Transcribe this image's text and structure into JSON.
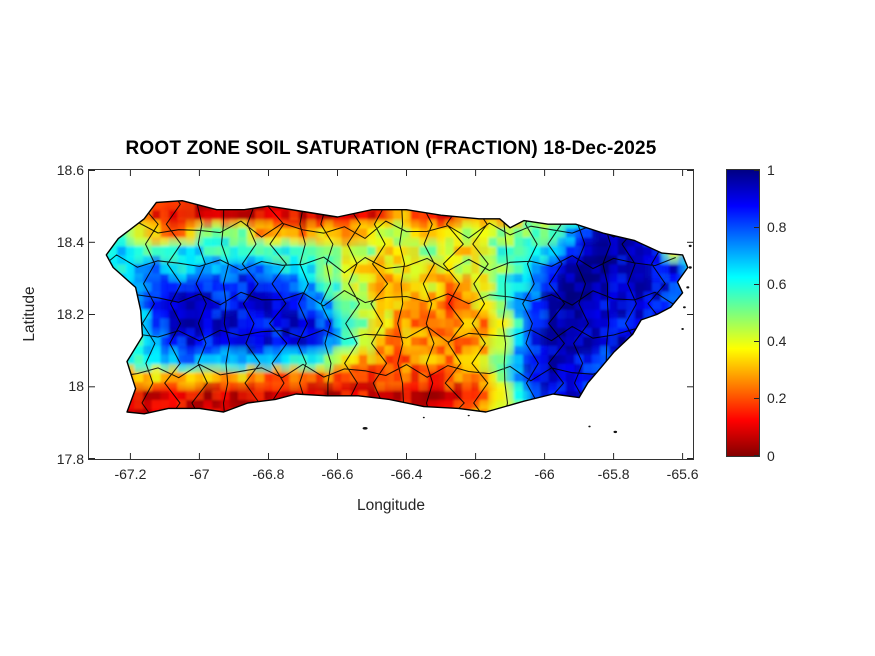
{
  "chart_data": {
    "type": "heatmap",
    "title": "ROOT ZONE SOIL SATURATION (FRACTION) 18-Dec-2025",
    "xlabel": "Longitude",
    "ylabel": "Latitude",
    "region": "Puerto Rico",
    "xlim": [
      -67.32,
      -65.57
    ],
    "ylim": [
      17.8,
      18.6
    ],
    "x_ticks": [
      -67.2,
      -67,
      -66.8,
      -66.6,
      -66.4,
      -66.2,
      -66,
      -65.8,
      -65.6
    ],
    "x_tick_labels": [
      "-67.2",
      "-67",
      "-66.8",
      "-66.6",
      "-66.4",
      "-66.2",
      "-66",
      "-65.8",
      "-65.6"
    ],
    "y_ticks": [
      17.8,
      18,
      18.2,
      18.4,
      18.6
    ],
    "y_tick_labels": [
      "17.8",
      "18",
      "18.2",
      "18.4",
      "18.6"
    ],
    "grid_on": false,
    "colorbar": {
      "min": 0,
      "max": 1,
      "ticks": [
        0,
        0.2,
        0.4,
        0.6,
        0.8,
        1
      ],
      "tick_labels": [
        "0",
        "0.2",
        "0.4",
        "0.6",
        "0.8",
        "1"
      ],
      "colormap": "jet-reversed (1=dark blue top, 0=dark red bottom)",
      "gradient_top_to_bottom": [
        "#000084",
        "#0000ff",
        "#0080ff",
        "#00ffff",
        "#7dff7d",
        "#ffff00",
        "#ff8000",
        "#ff0000",
        "#840000"
      ]
    },
    "grid": {
      "comment": "saturation fraction sampled on 0.05-deg grid, rows north-to-south, clipped to island outline",
      "lon_start": -67.275,
      "dlon": 0.05,
      "ncols": 36,
      "lat_start": 18.525,
      "dlat": -0.05,
      "nrows": 13,
      "values": [
        [
          0.3,
          0.3,
          0.25,
          0.2,
          0.15,
          0.1,
          0.12,
          0.1,
          0.12,
          0.15,
          0.1,
          0.12,
          0.1,
          0.15,
          0.12,
          0.1,
          0.15,
          0.2,
          0.15,
          0.12,
          0.15,
          0.3,
          0.35,
          0.3,
          0.35,
          0.4,
          0.45,
          0.6,
          0.75,
          0.8,
          0.8,
          0.85,
          0.9,
          0.85,
          0.8,
          0.8
        ],
        [
          0.35,
          0.3,
          0.2,
          0.15,
          0.1,
          0.08,
          0.1,
          0.12,
          0.1,
          0.08,
          0.12,
          0.1,
          0.08,
          0.1,
          0.12,
          0.15,
          0.1,
          0.3,
          0.2,
          0.15,
          0.1,
          0.25,
          0.3,
          0.25,
          0.35,
          0.45,
          0.4,
          0.6,
          0.75,
          0.85,
          0.9,
          0.9,
          0.85,
          0.8,
          0.8,
          0.8
        ],
        [
          0.55,
          0.6,
          0.45,
          0.3,
          0.25,
          0.3,
          0.55,
          0.55,
          0.5,
          0.3,
          0.35,
          0.3,
          0.25,
          0.35,
          0.3,
          0.35,
          0.4,
          0.45,
          0.35,
          0.3,
          0.35,
          0.45,
          0.4,
          0.45,
          0.5,
          0.55,
          0.55,
          0.7,
          0.85,
          0.95,
          0.95,
          0.9,
          0.85,
          0.3,
          0.6,
          0.7
        ],
        [
          0.6,
          0.65,
          0.6,
          0.55,
          0.6,
          0.65,
          0.6,
          0.55,
          0.6,
          0.6,
          0.55,
          0.6,
          0.55,
          0.5,
          0.45,
          0.5,
          0.4,
          0.35,
          0.45,
          0.5,
          0.4,
          0.35,
          0.45,
          0.55,
          0.5,
          0.6,
          0.7,
          0.85,
          0.95,
          1.0,
          0.95,
          0.9,
          0.9,
          0.35,
          0.85,
          0.7
        ],
        [
          0.7,
          0.65,
          0.7,
          0.75,
          0.7,
          0.65,
          0.7,
          0.75,
          0.8,
          0.75,
          0.7,
          0.65,
          0.6,
          0.5,
          0.4,
          0.35,
          0.3,
          0.35,
          0.4,
          0.3,
          0.35,
          0.45,
          0.4,
          0.5,
          0.6,
          0.7,
          0.85,
          0.95,
          1.0,
          1.0,
          0.95,
          0.9,
          0.85,
          0.9,
          0.6,
          0.8
        ],
        [
          0.6,
          0.65,
          0.75,
          0.8,
          0.85,
          0.9,
          0.85,
          0.8,
          0.85,
          0.9,
          0.85,
          0.8,
          0.7,
          0.6,
          0.5,
          0.4,
          0.3,
          0.25,
          0.3,
          0.35,
          0.25,
          0.3,
          0.4,
          0.55,
          0.65,
          0.75,
          0.9,
          1.0,
          1.0,
          0.95,
          0.9,
          0.95,
          0.9,
          0.85,
          0.7,
          0.8
        ],
        [
          0.55,
          0.6,
          0.7,
          0.85,
          0.9,
          0.95,
          0.9,
          0.85,
          0.9,
          0.95,
          0.9,
          0.85,
          0.8,
          0.7,
          0.55,
          0.45,
          0.35,
          0.3,
          0.25,
          0.3,
          0.2,
          0.25,
          0.35,
          0.5,
          0.7,
          0.85,
          0.95,
          1.0,
          0.95,
          0.9,
          0.95,
          0.9,
          0.85,
          0.8,
          0.75,
          0.8
        ],
        [
          0.5,
          0.55,
          0.65,
          0.8,
          0.9,
          0.95,
          0.9,
          0.95,
          0.9,
          0.85,
          0.9,
          0.95,
          0.9,
          0.8,
          0.65,
          0.5,
          0.4,
          0.3,
          0.25,
          0.2,
          0.25,
          0.3,
          0.25,
          0.35,
          0.6,
          0.8,
          0.95,
          1.0,
          0.95,
          0.9,
          0.85,
          0.9,
          0.85,
          0.8,
          0.7,
          0.75
        ],
        [
          0.45,
          0.5,
          0.6,
          0.7,
          0.85,
          0.9,
          0.85,
          0.9,
          0.95,
          0.9,
          0.85,
          0.9,
          0.85,
          0.75,
          0.6,
          0.45,
          0.3,
          0.25,
          0.3,
          0.25,
          0.2,
          0.25,
          0.3,
          0.4,
          0.65,
          0.85,
          0.95,
          1.0,
          0.95,
          0.9,
          0.95,
          0.9,
          0.8,
          0.75,
          0.7,
          0.7
        ],
        [
          0.5,
          0.55,
          0.6,
          0.65,
          0.7,
          0.75,
          0.7,
          0.65,
          0.7,
          0.75,
          0.7,
          0.65,
          0.6,
          0.5,
          0.4,
          0.3,
          0.25,
          0.2,
          0.25,
          0.3,
          0.25,
          0.3,
          0.35,
          0.5,
          0.75,
          0.9,
          0.95,
          0.9,
          0.85,
          0.8,
          0.85,
          0.8,
          0.75,
          0.7,
          0.65,
          0.65
        ],
        [
          0.3,
          0.25,
          0.3,
          0.35,
          0.3,
          0.35,
          0.3,
          0.25,
          0.3,
          0.25,
          0.2,
          0.25,
          0.2,
          0.25,
          0.2,
          0.15,
          0.2,
          0.25,
          0.2,
          0.15,
          0.2,
          0.25,
          0.3,
          0.45,
          0.7,
          0.9,
          0.95,
          0.9,
          0.85,
          0.85,
          0.8,
          0.7,
          0.65,
          0.6,
          0.6,
          0.6
        ],
        [
          0.15,
          0.1,
          0.08,
          0.1,
          0.12,
          0.1,
          0.05,
          0.1,
          0.05,
          0.1,
          0.12,
          0.08,
          0.1,
          0.05,
          0.1,
          0.12,
          0.1,
          0.08,
          0.1,
          0.05,
          0.1,
          0.15,
          0.2,
          0.35,
          0.6,
          0.8,
          0.85,
          0.9,
          0.85,
          0.8,
          0.75,
          0.7,
          0.65,
          0.6,
          0.6,
          0.6
        ],
        [
          0.1,
          0.08,
          0.1,
          0.12,
          0.1,
          0.08,
          0.1,
          0.12,
          0.1,
          0.08,
          0.1,
          0.12,
          0.1,
          0.08,
          0.1,
          0.12,
          0.1,
          0.08,
          0.1,
          0.12,
          0.15,
          0.2,
          0.3,
          0.4,
          0.5,
          0.55,
          0.55,
          0.55,
          0.55,
          0.55,
          0.55,
          0.55,
          0.55,
          0.55,
          0.55,
          0.55
        ]
      ]
    },
    "island_outline": [
      [
        -67.27,
        18.365
      ],
      [
        -67.235,
        18.41
      ],
      [
        -67.16,
        18.465
      ],
      [
        -67.125,
        18.51
      ],
      [
        -67.05,
        18.515
      ],
      [
        -66.95,
        18.49
      ],
      [
        -66.87,
        18.49
      ],
      [
        -66.8,
        18.5
      ],
      [
        -66.7,
        18.485
      ],
      [
        -66.6,
        18.47
      ],
      [
        -66.5,
        18.49
      ],
      [
        -66.4,
        18.49
      ],
      [
        -66.3,
        18.475
      ],
      [
        -66.19,
        18.465
      ],
      [
        -66.13,
        18.465
      ],
      [
        -66.1,
        18.44
      ],
      [
        -66.06,
        18.46
      ],
      [
        -65.99,
        18.45
      ],
      [
        -65.91,
        18.45
      ],
      [
        -65.83,
        18.425
      ],
      [
        -65.74,
        18.405
      ],
      [
        -65.66,
        18.37
      ],
      [
        -65.6,
        18.365
      ],
      [
        -65.585,
        18.33
      ],
      [
        -65.615,
        18.29
      ],
      [
        -65.6,
        18.26
      ],
      [
        -65.635,
        18.22
      ],
      [
        -65.675,
        18.2
      ],
      [
        -65.72,
        18.185
      ],
      [
        -65.745,
        18.145
      ],
      [
        -65.8,
        18.095
      ],
      [
        -65.835,
        18.055
      ],
      [
        -65.875,
        18.01
      ],
      [
        -65.9,
        17.97
      ],
      [
        -65.975,
        17.98
      ],
      [
        -66.06,
        17.96
      ],
      [
        -66.17,
        17.93
      ],
      [
        -66.25,
        17.94
      ],
      [
        -66.35,
        17.945
      ],
      [
        -66.45,
        17.965
      ],
      [
        -66.54,
        17.975
      ],
      [
        -66.63,
        17.975
      ],
      [
        -66.72,
        17.98
      ],
      [
        -66.78,
        17.965
      ],
      [
        -66.86,
        17.955
      ],
      [
        -66.93,
        17.93
      ],
      [
        -67.0,
        17.94
      ],
      [
        -67.09,
        17.94
      ],
      [
        -67.16,
        17.925
      ],
      [
        -67.21,
        17.93
      ],
      [
        -67.185,
        17.995
      ],
      [
        -67.21,
        18.07
      ],
      [
        -67.165,
        18.14
      ],
      [
        -67.17,
        18.21
      ],
      [
        -67.185,
        18.275
      ],
      [
        -67.25,
        18.33
      ]
    ],
    "islets": [
      [
        -66.52,
        17.885,
        2.5,
        1.3
      ],
      [
        -65.795,
        17.875,
        1.8,
        1.2
      ],
      [
        -65.87,
        17.89,
        1.2,
        0.9
      ],
      [
        -66.35,
        17.915,
        1.0,
        0.8
      ],
      [
        -66.22,
        17.92,
        1.0,
        0.7
      ],
      [
        -65.578,
        18.39,
        1.5,
        1.2
      ],
      [
        -65.578,
        18.33,
        1.6,
        1.2
      ],
      [
        -65.585,
        18.275,
        1.5,
        1.1
      ],
      [
        -65.595,
        18.22,
        1.4,
        1.0
      ],
      [
        -65.6,
        18.16,
        1.3,
        1.0
      ]
    ],
    "overlays": [
      "municipal boundary lines (black)"
    ],
    "text_color": "#262626",
    "boundary_color": "#000000"
  }
}
